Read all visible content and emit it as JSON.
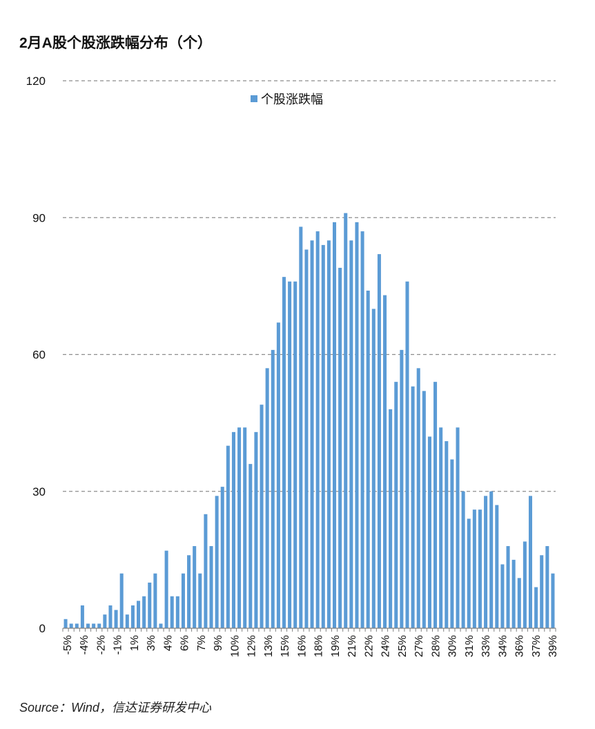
{
  "title": "2月A股个股涨跌幅分布（个）",
  "source": "Source：Wind，信达证券研发中心",
  "chart_data": {
    "type": "bar",
    "title": "2月A股个股涨跌幅分布（个）",
    "xlabel": "",
    "ylabel": "",
    "ylim": [
      0,
      120
    ],
    "yticks": [
      0,
      30,
      60,
      90,
      120
    ],
    "grid": true,
    "legend_position": "top-center",
    "bar_color": "#5b9bd5",
    "series": [
      {
        "name": "个股涨跌幅",
        "values": [
          2,
          1,
          1,
          5,
          1,
          1,
          1,
          3,
          5,
          4,
          12,
          3,
          5,
          6,
          7,
          10,
          12,
          1,
          17,
          7,
          7,
          12,
          16,
          18,
          12,
          25,
          18,
          29,
          31,
          40,
          43,
          44,
          44,
          36,
          43,
          49,
          57,
          61,
          67,
          77,
          76,
          76,
          88,
          83,
          85,
          87,
          84,
          85,
          89,
          79,
          91,
          85,
          89,
          87,
          74,
          70,
          82,
          73,
          48,
          54,
          61,
          76,
          53,
          57,
          52,
          42,
          54,
          44,
          41,
          37,
          44,
          30,
          24,
          26,
          26,
          29,
          30,
          27,
          14,
          18,
          15,
          11,
          19,
          29,
          9,
          16,
          18,
          12
        ]
      }
    ],
    "x_tick_labels": [
      "-5%",
      "-4%",
      "-2%",
      "-1%",
      "1%",
      "3%",
      "4%",
      "6%",
      "7%",
      "9%",
      "10%",
      "12%",
      "13%",
      "15%",
      "16%",
      "18%",
      "19%",
      "21%",
      "22%",
      "24%",
      "25%",
      "27%",
      "28%",
      "30%",
      "31%",
      "33%",
      "34%",
      "36%",
      "37%",
      "39%"
    ]
  }
}
